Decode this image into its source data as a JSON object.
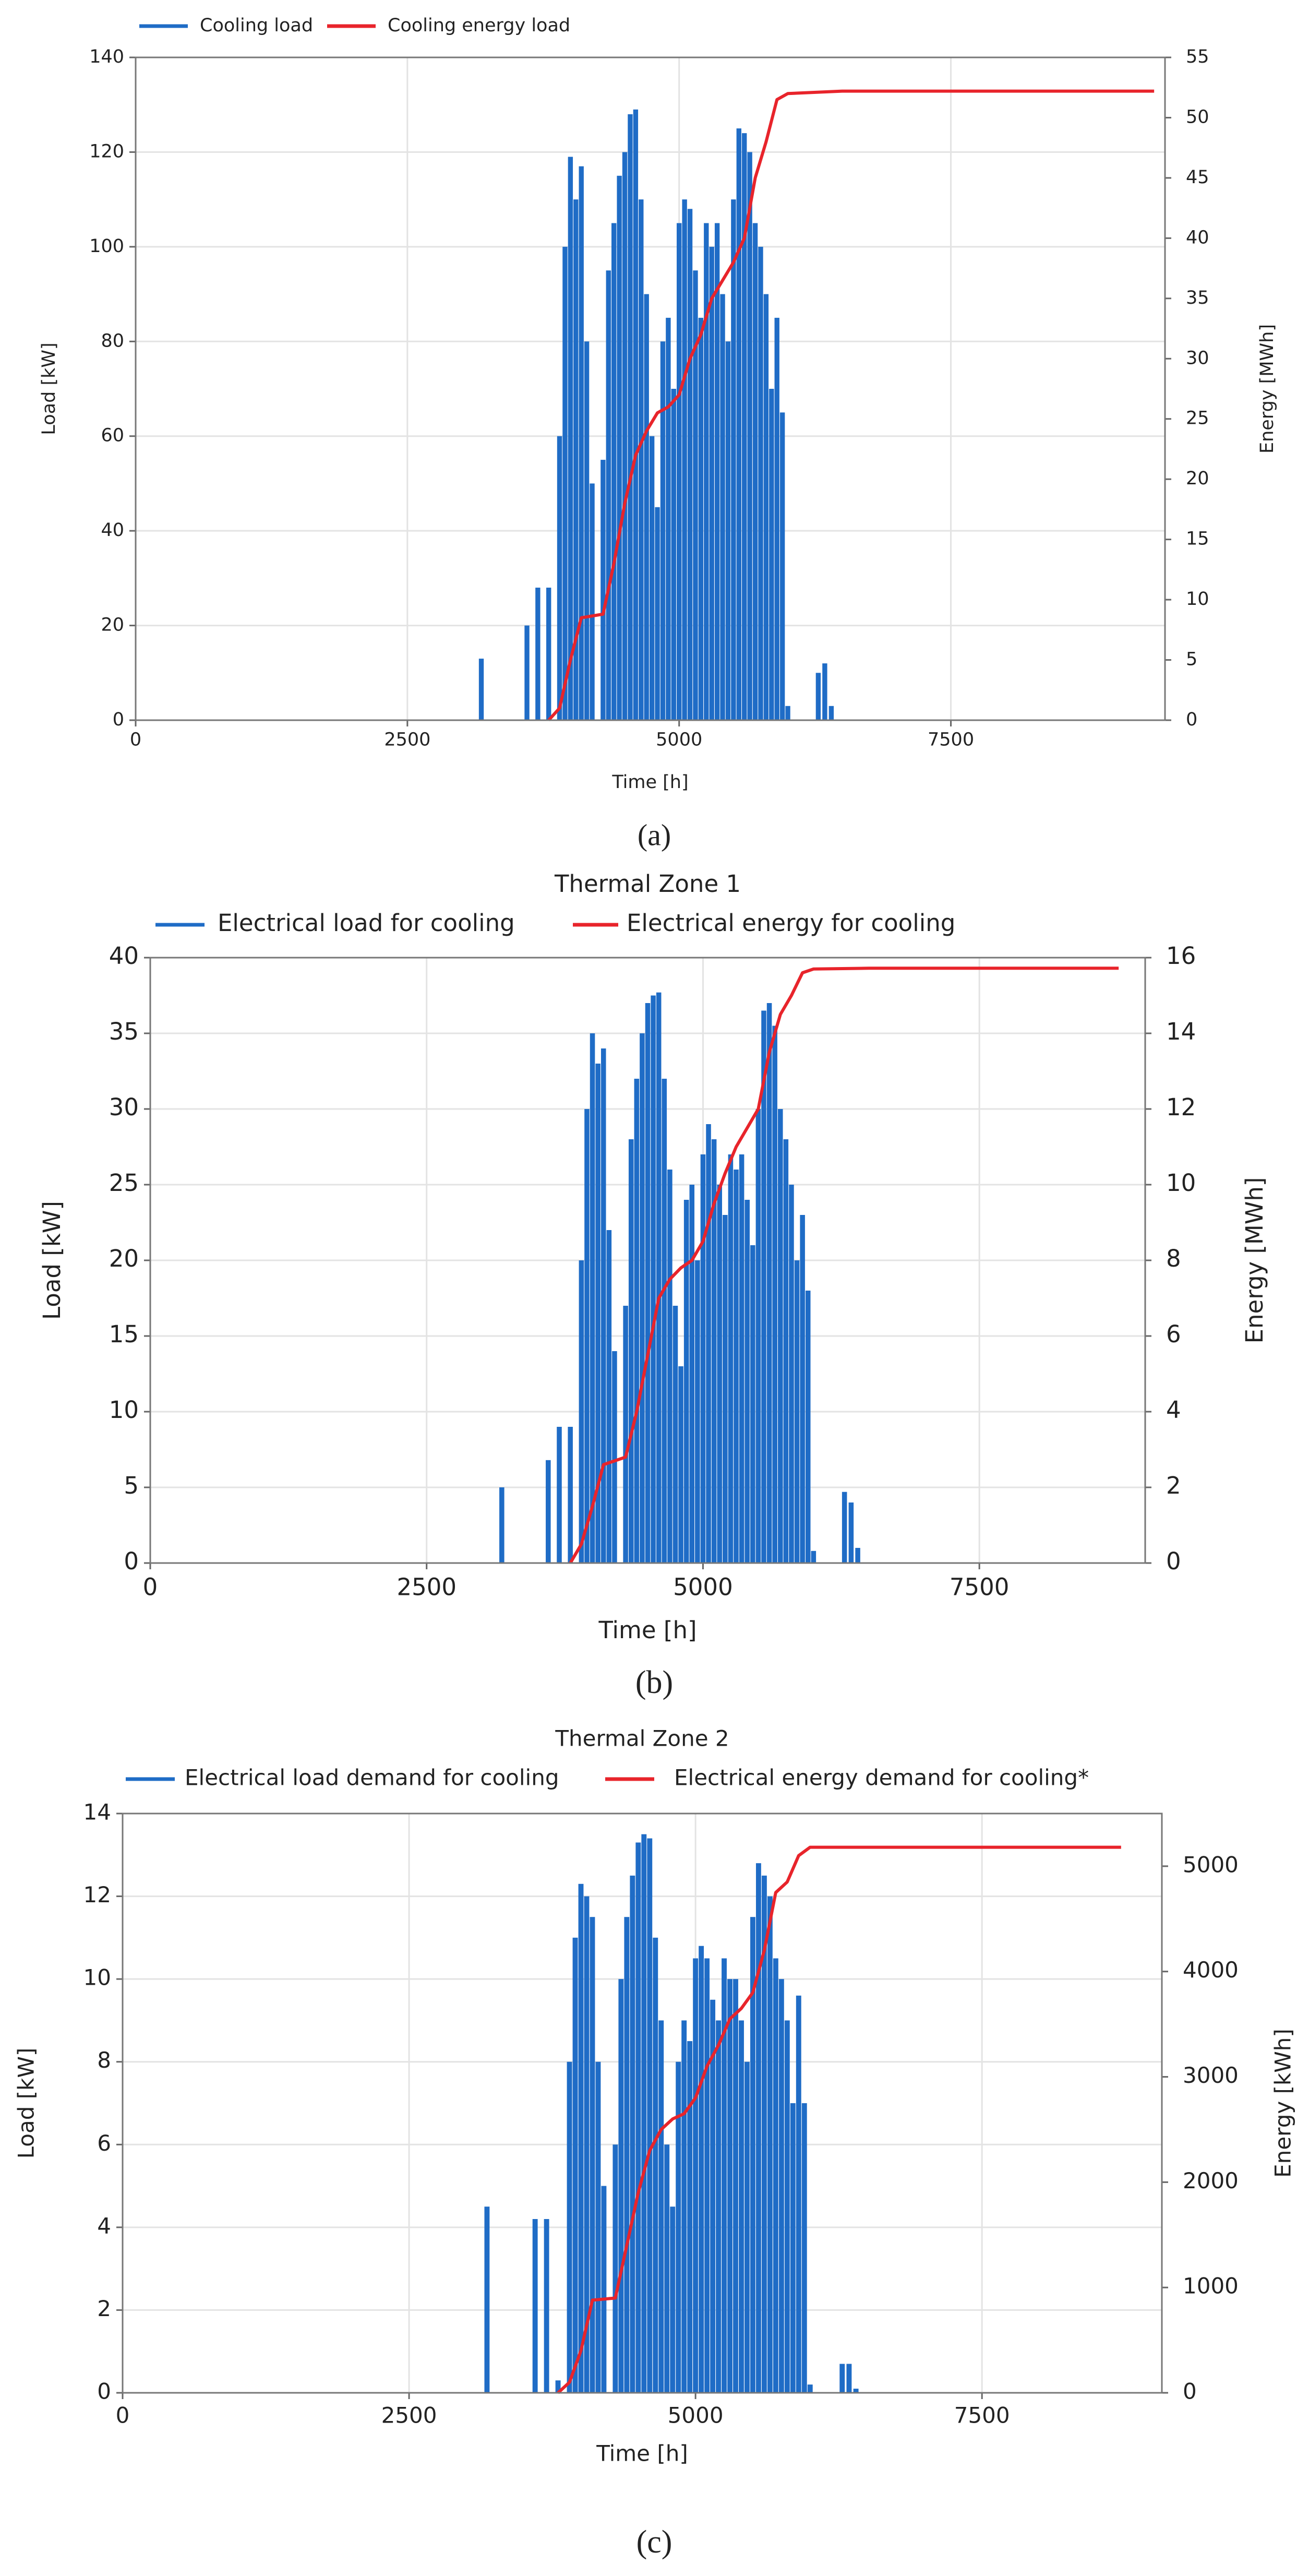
{
  "chart_data": [
    {
      "type": "bar",
      "caption": "(a)",
      "x_label": "Time [h]",
      "y_label": "Load [kW]",
      "y2_label": "Energy [MWh]",
      "xlim": [
        0,
        9470
      ],
      "xticks": [
        0,
        2500,
        5000,
        7500
      ],
      "ylim": [
        0,
        140
      ],
      "yticks": [
        0,
        20,
        40,
        60,
        80,
        100,
        120,
        140
      ],
      "y2lim": [
        0,
        55
      ],
      "y2ticks": [
        0,
        5,
        10,
        15,
        20,
        25,
        30,
        35,
        40,
        45,
        50,
        55
      ],
      "grid": true,
      "legend": "top-left",
      "series": [
        {
          "name": "Cooling load",
          "type": "bar",
          "color": "#1f6cc6",
          "x": [
            3180,
            3600,
            3700,
            3800,
            3900,
            3950,
            4000,
            4050,
            4100,
            4150,
            4200,
            4300,
            4350,
            4400,
            4450,
            4500,
            4550,
            4600,
            4650,
            4700,
            4750,
            4800,
            4850,
            4900,
            4950,
            5000,
            5050,
            5100,
            5150,
            5200,
            5250,
            5300,
            5350,
            5400,
            5450,
            5500,
            5550,
            5600,
            5650,
            5700,
            5750,
            5800,
            5850,
            5900,
            5950,
            6000,
            6280,
            6340,
            6400
          ],
          "values": [
            13,
            20,
            28,
            28,
            60,
            100,
            119,
            110,
            117,
            80,
            50,
            55,
            95,
            105,
            115,
            120,
            128,
            129,
            110,
            90,
            60,
            45,
            80,
            85,
            70,
            105,
            110,
            108,
            95,
            85,
            105,
            100,
            105,
            90,
            80,
            110,
            125,
            124,
            120,
            105,
            100,
            90,
            70,
            85,
            65,
            3,
            10,
            12,
            3
          ]
        },
        {
          "name": "Cooling energy load",
          "type": "line",
          "axis": "y2",
          "color": "#e8242b",
          "x": [
            3800,
            3900,
            4000,
            4100,
            4300,
            4400,
            4500,
            4600,
            4700,
            4800,
            4900,
            5000,
            5100,
            5200,
            5300,
            5400,
            5500,
            5600,
            5700,
            5800,
            5900,
            6000,
            6500,
            9370
          ],
          "values": [
            0,
            1,
            5,
            8.5,
            8.8,
            13,
            18,
            22,
            24,
            25.5,
            26,
            27,
            30,
            32,
            35,
            36.5,
            38,
            40,
            45,
            48,
            51.5,
            52,
            52.2,
            52.2
          ]
        }
      ]
    },
    {
      "type": "bar",
      "title": "Thermal Zone 1",
      "caption": "(b)",
      "x_label": "Time [h]",
      "y_label": "Load [kW]",
      "y2_label": "Energy [MWh]",
      "xlim": [
        0,
        9000
      ],
      "xticks": [
        0,
        2500,
        5000,
        7500
      ],
      "ylim": [
        0,
        40
      ],
      "yticks": [
        0,
        5,
        10,
        15,
        20,
        25,
        30,
        35,
        40
      ],
      "y2lim": [
        0,
        16
      ],
      "y2ticks": [
        0,
        2,
        4,
        6,
        8,
        10,
        12,
        14,
        16
      ],
      "grid": true,
      "legend": "top-left",
      "series": [
        {
          "name": "Electrical load for cooling",
          "type": "bar",
          "color": "#1f6cc6",
          "x": [
            3180,
            3600,
            3700,
            3800,
            3900,
            3950,
            4000,
            4050,
            4100,
            4150,
            4200,
            4300,
            4350,
            4400,
            4450,
            4500,
            4550,
            4600,
            4650,
            4700,
            4750,
            4800,
            4850,
            4900,
            4950,
            5000,
            5050,
            5100,
            5150,
            5200,
            5250,
            5300,
            5350,
            5400,
            5450,
            5500,
            5550,
            5600,
            5650,
            5700,
            5750,
            5800,
            5850,
            5900,
            5950,
            6000,
            6280,
            6340,
            6400
          ],
          "values": [
            5,
            6.8,
            9,
            9,
            20,
            30,
            35,
            33,
            34,
            22,
            14,
            17,
            28,
            32,
            35,
            37,
            37.5,
            37.7,
            32,
            26,
            17,
            13,
            24,
            25,
            20,
            27,
            29,
            28,
            25,
            23,
            27,
            26,
            27,
            24,
            21,
            30,
            36.5,
            37,
            35.5,
            30,
            28,
            25,
            20,
            23,
            18,
            0.8,
            4.7,
            4,
            1
          ]
        },
        {
          "name": "Electrical energy for cooling",
          "type": "line",
          "axis": "y2",
          "color": "#e8242b",
          "x": [
            3800,
            3900,
            4000,
            4100,
            4300,
            4400,
            4500,
            4600,
            4700,
            4800,
            4900,
            5000,
            5100,
            5200,
            5300,
            5400,
            5500,
            5600,
            5700,
            5800,
            5900,
            6000,
            6500,
            8760
          ],
          "values": [
            0,
            0.5,
            1.5,
            2.6,
            2.8,
            4,
            5.5,
            7,
            7.5,
            7.8,
            8,
            8.5,
            9.5,
            10.3,
            11,
            11.5,
            12,
            13.5,
            14.5,
            15,
            15.6,
            15.7,
            15.72,
            15.72
          ]
        }
      ]
    },
    {
      "type": "bar",
      "title": "Thermal Zone 2",
      "caption": "(c)",
      "x_label": "Time [h]",
      "y_label": "Load [kW]",
      "y2_label": "Energy [kWh]",
      "xlim": [
        0,
        9070
      ],
      "xticks": [
        0,
        2500,
        5000,
        7500
      ],
      "ylim": [
        0,
        14
      ],
      "yticks": [
        0,
        2,
        4,
        6,
        8,
        10,
        12,
        14
      ],
      "y2lim": [
        0,
        5500
      ],
      "y2ticks": [
        0,
        1000,
        2000,
        3000,
        4000,
        5000
      ],
      "grid": true,
      "legend": "top-left",
      "series": [
        {
          "name": "Electrical load demand for cooling",
          "type": "bar",
          "color": "#1f6cc6",
          "x": [
            3180,
            3600,
            3700,
            3800,
            3900,
            3950,
            4000,
            4050,
            4100,
            4150,
            4200,
            4300,
            4350,
            4400,
            4450,
            4500,
            4550,
            4600,
            4650,
            4700,
            4750,
            4800,
            4850,
            4900,
            4950,
            5000,
            5050,
            5100,
            5150,
            5200,
            5250,
            5300,
            5350,
            5400,
            5450,
            5500,
            5550,
            5600,
            5650,
            5700,
            5750,
            5800,
            5850,
            5900,
            5950,
            6000,
            6280,
            6340,
            6400
          ],
          "values": [
            4.5,
            4.2,
            4.2,
            0.3,
            8,
            11,
            12.3,
            12,
            11.5,
            8,
            5,
            6,
            10,
            11.5,
            12.5,
            13.3,
            13.5,
            13.4,
            11,
            9,
            6,
            4.5,
            8,
            9,
            8.5,
            10.5,
            10.8,
            10.5,
            9.5,
            9,
            10.5,
            10,
            10,
            9,
            8,
            11.5,
            12.8,
            12.5,
            12,
            10.5,
            10,
            9,
            7,
            9.6,
            7,
            0.2,
            0.7,
            0.7,
            0.1
          ]
        },
        {
          "name": "Electrical energy demand for cooling*",
          "type": "line",
          "axis": "y2",
          "color": "#e8242b",
          "x": [
            3800,
            3900,
            4000,
            4100,
            4300,
            4400,
            4500,
            4600,
            4700,
            4800,
            4900,
            5000,
            5100,
            5200,
            5300,
            5400,
            5500,
            5600,
            5700,
            5800,
            5900,
            6000,
            8714
          ],
          "values": [
            0,
            100,
            400,
            880,
            900,
            1400,
            1900,
            2300,
            2500,
            2600,
            2650,
            2800,
            3100,
            3300,
            3550,
            3650,
            3800,
            4200,
            4750,
            4850,
            5100,
            5180,
            5180
          ]
        }
      ]
    }
  ]
}
